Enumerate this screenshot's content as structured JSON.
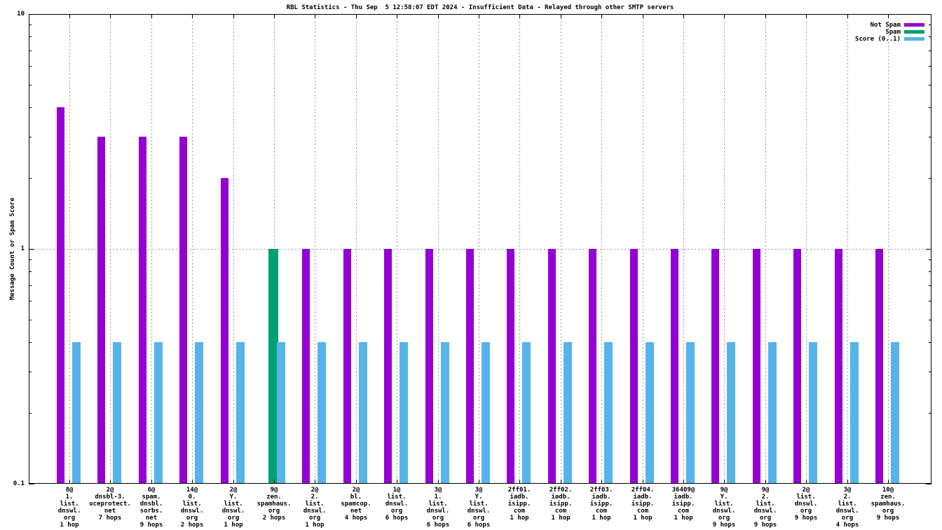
{
  "title": "RBL Statistics - Thu Sep  5 12:58:07 EDT 2024 - Insufficient Data - Relayed through other SMTP servers",
  "chart_data": {
    "type": "bar",
    "title": "RBL Statistics - Thu Sep  5 12:58:07 EDT 2024 - Insufficient Data - Relayed through other SMTP servers",
    "xlabel": "",
    "ylabel": "Message Count or Spam Score",
    "yscale": "log",
    "ylim": [
      0.1,
      10
    ],
    "ytick_labels": [
      "10",
      "1",
      "0.1"
    ],
    "ytick_values": [
      10,
      1,
      0.1
    ],
    "grid": {
      "horizontal_at": [
        1
      ],
      "vertical": "at every category center",
      "style": "dotted gray"
    },
    "legend_position": "top-right",
    "legend": [
      {
        "label": "Not Spam",
        "color": "#9400D3"
      },
      {
        "label": "Spam",
        "color": "#009E73"
      },
      {
        "label": "Score (0..1)",
        "color": "#56B4E9"
      }
    ],
    "categories": [
      {
        "label_lines": [
          "8@",
          "1.",
          "list.",
          "dnswl.",
          "org",
          "1 hop"
        ]
      },
      {
        "label_lines": [
          "2@",
          "dnsbl-3.",
          "uceprotect.",
          "net",
          "7 hops"
        ]
      },
      {
        "label_lines": [
          "6@",
          "spam.",
          "dnsbl.",
          "sorbs.",
          "net",
          "9 hops"
        ]
      },
      {
        "label_lines": [
          "14@",
          "0.",
          "list.",
          "dnswl.",
          "org",
          "2 hops"
        ]
      },
      {
        "label_lines": [
          "2@",
          "Y.",
          "list.",
          "dnswl.",
          "org",
          "1 hop"
        ]
      },
      {
        "label_lines": [
          "9@",
          "zen.",
          "spamhaus.",
          "org",
          "2 hops"
        ]
      },
      {
        "label_lines": [
          "2@",
          "2.",
          "list.",
          "dnswl.",
          "org",
          "1 hop"
        ]
      },
      {
        "label_lines": [
          "2@",
          "bl.",
          "spamcop.",
          "net",
          "4 hops"
        ]
      },
      {
        "label_lines": [
          "1@",
          "list.",
          "dnswl.",
          "org",
          "6 hops"
        ]
      },
      {
        "label_lines": [
          "3@",
          "1.",
          "list.",
          "dnswl.",
          "org",
          "6 hops"
        ]
      },
      {
        "label_lines": [
          "3@",
          "Y.",
          "list.",
          "dnswl.",
          "org",
          "6 hops"
        ]
      },
      {
        "label_lines": [
          "2ff01.",
          "iadb.",
          "isipp.",
          "com",
          "1 hop"
        ]
      },
      {
        "label_lines": [
          "2ff02.",
          "iadb.",
          "isipp.",
          "com",
          "1 hop"
        ]
      },
      {
        "label_lines": [
          "2ff03.",
          "iadb.",
          "isipp.",
          "com",
          "1 hop"
        ]
      },
      {
        "label_lines": [
          "2ff04.",
          "iadb.",
          "isipp.",
          "com",
          "1 hop"
        ]
      },
      {
        "label_lines": [
          "36409@",
          "iadb.",
          "isipp.",
          "com",
          "1 hop"
        ]
      },
      {
        "label_lines": [
          "9@",
          "Y.",
          "list.",
          "dnswl.",
          "org",
          "9 hops"
        ]
      },
      {
        "label_lines": [
          "9@",
          "2.",
          "list.",
          "dnswl.",
          "org",
          "9 hops"
        ]
      },
      {
        "label_lines": [
          "2@",
          "list.",
          "dnswl.",
          "org",
          "9 hops"
        ]
      },
      {
        "label_lines": [
          "3@",
          "2.",
          "list.",
          "dnswl.",
          "org",
          "4 hops"
        ]
      },
      {
        "label_lines": [
          "10@",
          "zen.",
          "spamhaus.",
          "org",
          "9 hops"
        ]
      }
    ],
    "series": [
      {
        "name": "Not Spam",
        "color": "#9400D3",
        "values": [
          4,
          3,
          3,
          3,
          2,
          null,
          1,
          1,
          1,
          1,
          1,
          1,
          1,
          1,
          1,
          1,
          1,
          1,
          1,
          1,
          1
        ]
      },
      {
        "name": "Spam",
        "color": "#009E73",
        "values": [
          null,
          null,
          null,
          null,
          null,
          1,
          null,
          null,
          null,
          null,
          null,
          null,
          null,
          null,
          null,
          null,
          null,
          null,
          null,
          null,
          null
        ]
      },
      {
        "name": "Score (0..1)",
        "color": "#56B4E9",
        "values": [
          0.4,
          0.4,
          0.4,
          0.4,
          0.4,
          0.4,
          0.4,
          0.4,
          0.4,
          0.4,
          0.4,
          0.4,
          0.4,
          0.4,
          0.4,
          0.4,
          0.4,
          0.4,
          0.4,
          0.4,
          0.4
        ]
      }
    ]
  }
}
